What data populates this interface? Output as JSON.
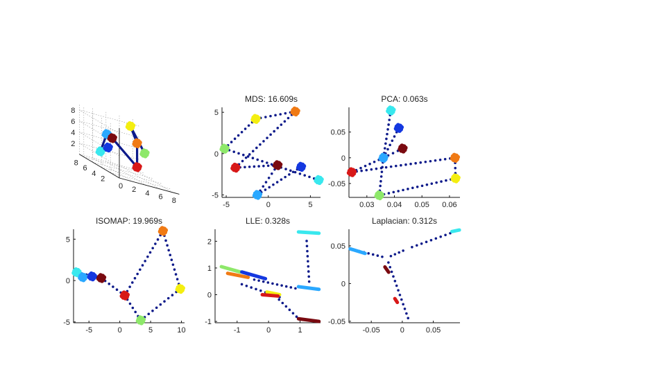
{
  "colors": {
    "path": "#0d1a8a",
    "red": "#d81818",
    "maroon": "#7a0a10",
    "blue": "#1438e0",
    "mid_blue": "#1f6fe0",
    "light_blue": "#2aa8ff",
    "cyan": "#39e8ee",
    "green": "#8ee86a",
    "yellow": "#f4ee10",
    "orange": "#f07a14",
    "axis": "#111111"
  },
  "chart_data": [
    {
      "id": "swiss-3d",
      "type": "scatter",
      "projection": "3d",
      "title": "",
      "z_ticks": [
        "2",
        "4",
        "6",
        "8"
      ],
      "y_ticks": [
        "8",
        "6",
        "4",
        "2"
      ],
      "x_ticks": [
        "0",
        "2",
        "4",
        "6",
        "8"
      ],
      "clusters": [
        {
          "color": "cyan",
          "x": 1.5,
          "y": 6.5,
          "z": 2.2
        },
        {
          "color": "blue",
          "x": 2.3,
          "y": 6.0,
          "z": 3.4
        },
        {
          "color": "light_blue",
          "x": 2.5,
          "y": 6.6,
          "z": 5.6
        },
        {
          "color": "maroon",
          "x": 3.2,
          "y": 6.4,
          "z": 5.2
        },
        {
          "color": "red",
          "x": 4.8,
          "y": 3.2,
          "z": 2.0
        },
        {
          "color": "orange",
          "x": 5.6,
          "y": 4.4,
          "z": 6.0
        },
        {
          "color": "green",
          "x": 6.6,
          "y": 4.2,
          "z": 4.6
        },
        {
          "color": "yellow",
          "x": 5.0,
          "y": 5.0,
          "z": 8.6
        }
      ],
      "paths": [
        [
          "cyan",
          "light_blue"
        ],
        [
          "light_blue",
          "maroon"
        ],
        [
          "maroon",
          "red"
        ],
        [
          "red",
          "orange"
        ],
        [
          "orange",
          "yellow"
        ],
        [
          "yellow",
          "green"
        ],
        [
          "blue",
          "cyan"
        ]
      ]
    },
    {
      "id": "mds",
      "type": "scatter",
      "title": "MDS: 16.609s",
      "xlim": [
        -5.5,
        6.2
      ],
      "ylim": [
        -5.3,
        5.6
      ],
      "x_ticks": [
        -5,
        0,
        5
      ],
      "y_ticks": [
        -5,
        0,
        5
      ],
      "clusters": [
        {
          "color": "orange",
          "x": 3.2,
          "y": 5.1
        },
        {
          "color": "yellow",
          "x": -1.5,
          "y": 4.2
        },
        {
          "color": "green",
          "x": -5.2,
          "y": 0.6
        },
        {
          "color": "red",
          "x": -3.9,
          "y": -1.7
        },
        {
          "color": "maroon",
          "x": 1.1,
          "y": -1.4
        },
        {
          "color": "blue",
          "x": 3.9,
          "y": -1.6
        },
        {
          "color": "cyan",
          "x": 6.0,
          "y": -3.2
        },
        {
          "color": "light_blue",
          "x": -1.3,
          "y": -5.0
        }
      ],
      "paths": [
        [
          "green",
          "yellow"
        ],
        [
          "yellow",
          "orange"
        ],
        [
          "orange",
          "red"
        ],
        [
          "red",
          "maroon"
        ],
        [
          "green",
          "cyan"
        ],
        [
          "maroon",
          "light_blue"
        ],
        [
          "blue",
          "light_blue"
        ]
      ]
    },
    {
      "id": "pca",
      "type": "scatter",
      "title": "PCA: 0.063s",
      "xlim": [
        0.0235,
        0.0638
      ],
      "ylim": [
        -0.077,
        0.098
      ],
      "x_ticks": [
        0.03,
        0.04,
        0.05,
        0.06
      ],
      "y_ticks": [
        -0.05,
        0,
        0.05
      ],
      "tick_labels_x": [
        "0.03",
        "0.04",
        "0.05",
        "0.06"
      ],
      "tick_labels_y": [
        "-0.05",
        "0",
        "0.05"
      ],
      "clusters": [
        {
          "color": "cyan",
          "x": 0.0387,
          "y": 0.092
        },
        {
          "color": "blue",
          "x": 0.0416,
          "y": 0.058
        },
        {
          "color": "maroon",
          "x": 0.043,
          "y": 0.018
        },
        {
          "color": "light_blue",
          "x": 0.036,
          "y": 0.0
        },
        {
          "color": "red",
          "x": 0.0245,
          "y": -0.028
        },
        {
          "color": "orange",
          "x": 0.062,
          "y": 0.0
        },
        {
          "color": "yellow",
          "x": 0.0622,
          "y": -0.04
        },
        {
          "color": "green",
          "x": 0.0345,
          "y": -0.073
        }
      ],
      "paths": [
        [
          "cyan",
          "light_blue"
        ],
        [
          "blue",
          "light_blue"
        ],
        [
          "maroon",
          "light_blue"
        ],
        [
          "light_blue",
          "red"
        ],
        [
          "red",
          "orange"
        ],
        [
          "orange",
          "yellow"
        ],
        [
          "yellow",
          "green"
        ],
        [
          "light_blue",
          "green"
        ]
      ]
    },
    {
      "id": "isomap",
      "type": "scatter",
      "title": "ISOMAP: 19.969s",
      "xlim": [
        -7.5,
        10.5
      ],
      "ylim": [
        -5.1,
        6.2
      ],
      "x_ticks": [
        -5,
        0,
        5,
        10
      ],
      "y_ticks": [
        -5,
        0,
        5
      ],
      "clusters": [
        {
          "color": "cyan",
          "x": -7.0,
          "y": 1.0
        },
        {
          "color": "light_blue",
          "x": -6.0,
          "y": 0.4
        },
        {
          "color": "blue",
          "x": -4.5,
          "y": 0.5
        },
        {
          "color": "maroon",
          "x": -3.0,
          "y": 0.3
        },
        {
          "color": "red",
          "x": 0.8,
          "y": -1.8
        },
        {
          "color": "yellow",
          "x": 9.8,
          "y": -1.0
        },
        {
          "color": "orange",
          "x": 7.0,
          "y": 6.0
        },
        {
          "color": "green",
          "x": 3.4,
          "y": -4.8
        }
      ],
      "paths": [
        [
          "cyan",
          "maroon"
        ],
        [
          "maroon",
          "red"
        ],
        [
          "red",
          "orange"
        ],
        [
          "orange",
          "yellow"
        ],
        [
          "yellow",
          "green"
        ],
        [
          "green",
          "red"
        ]
      ]
    },
    {
      "id": "lle",
      "type": "scatter",
      "title": "LLE: 0.328s",
      "xlim": [
        -1.7,
        1.65
      ],
      "ylim": [
        -1.05,
        2.45
      ],
      "x_ticks": [
        -1,
        0,
        1
      ],
      "y_ticks": [
        -1,
        0,
        1,
        2
      ],
      "segments": [
        {
          "color": "cyan",
          "x1": 0.95,
          "y1": 2.35,
          "x2": 1.6,
          "y2": 2.3
        },
        {
          "color": "green",
          "x1": -1.5,
          "y1": 1.05,
          "x2": -0.9,
          "y2": 0.85
        },
        {
          "color": "orange",
          "x1": -1.3,
          "y1": 0.8,
          "x2": -0.65,
          "y2": 0.65
        },
        {
          "color": "blue",
          "x1": -0.85,
          "y1": 0.85,
          "x2": -0.1,
          "y2": 0.6
        },
        {
          "color": "yellow",
          "x1": -0.05,
          "y1": 0.1,
          "x2": 0.35,
          "y2": 0.0
        },
        {
          "color": "red",
          "x1": -0.2,
          "y1": 0.0,
          "x2": 0.3,
          "y2": -0.05
        },
        {
          "color": "light_blue",
          "x1": 0.95,
          "y1": 0.3,
          "x2": 1.6,
          "y2": 0.2
        },
        {
          "color": "maroon",
          "x1": 0.95,
          "y1": -0.9,
          "x2": 1.6,
          "y2": -1.0
        }
      ],
      "paths": [
        [
          -1.0,
          0.45,
          0.5,
          -0.15
        ],
        [
          -0.6,
          0.6,
          1.0,
          0.2
        ],
        [
          0.0,
          0.2,
          1.0,
          -0.95
        ],
        [
          1.2,
          2.2,
          1.3,
          0.3
        ]
      ]
    },
    {
      "id": "laplacian",
      "type": "scatter",
      "title": "Laplacian: 0.312s",
      "xlim": [
        -0.086,
        0.093
      ],
      "ylim": [
        -0.052,
        0.072
      ],
      "x_ticks": [
        -0.05,
        0,
        0.05
      ],
      "y_ticks": [
        -0.05,
        0,
        0.05
      ],
      "tick_labels_x": [
        "-0.05",
        "0",
        "0.05"
      ],
      "tick_labels_y": [
        "-0.05",
        "0",
        "0.05"
      ],
      "segments": [
        {
          "color": "light_blue",
          "x1": -0.084,
          "y1": 0.046,
          "x2": -0.06,
          "y2": 0.04
        },
        {
          "color": "cyan",
          "x1": 0.08,
          "y1": 0.069,
          "x2": 0.092,
          "y2": 0.071
        },
        {
          "color": "maroon",
          "x1": -0.028,
          "y1": 0.022,
          "x2": -0.022,
          "y2": 0.015
        },
        {
          "color": "red",
          "x1": -0.012,
          "y1": -0.02,
          "x2": -0.008,
          "y2": -0.025
        }
      ],
      "paths": [
        [
          -0.084,
          0.046,
          -0.025,
          0.034
        ],
        [
          -0.025,
          0.034,
          0.008,
          0.046
        ],
        [
          0.008,
          0.046,
          0.085,
          0.069
        ],
        [
          -0.025,
          0.034,
          0.012,
          -0.052
        ]
      ]
    }
  ]
}
